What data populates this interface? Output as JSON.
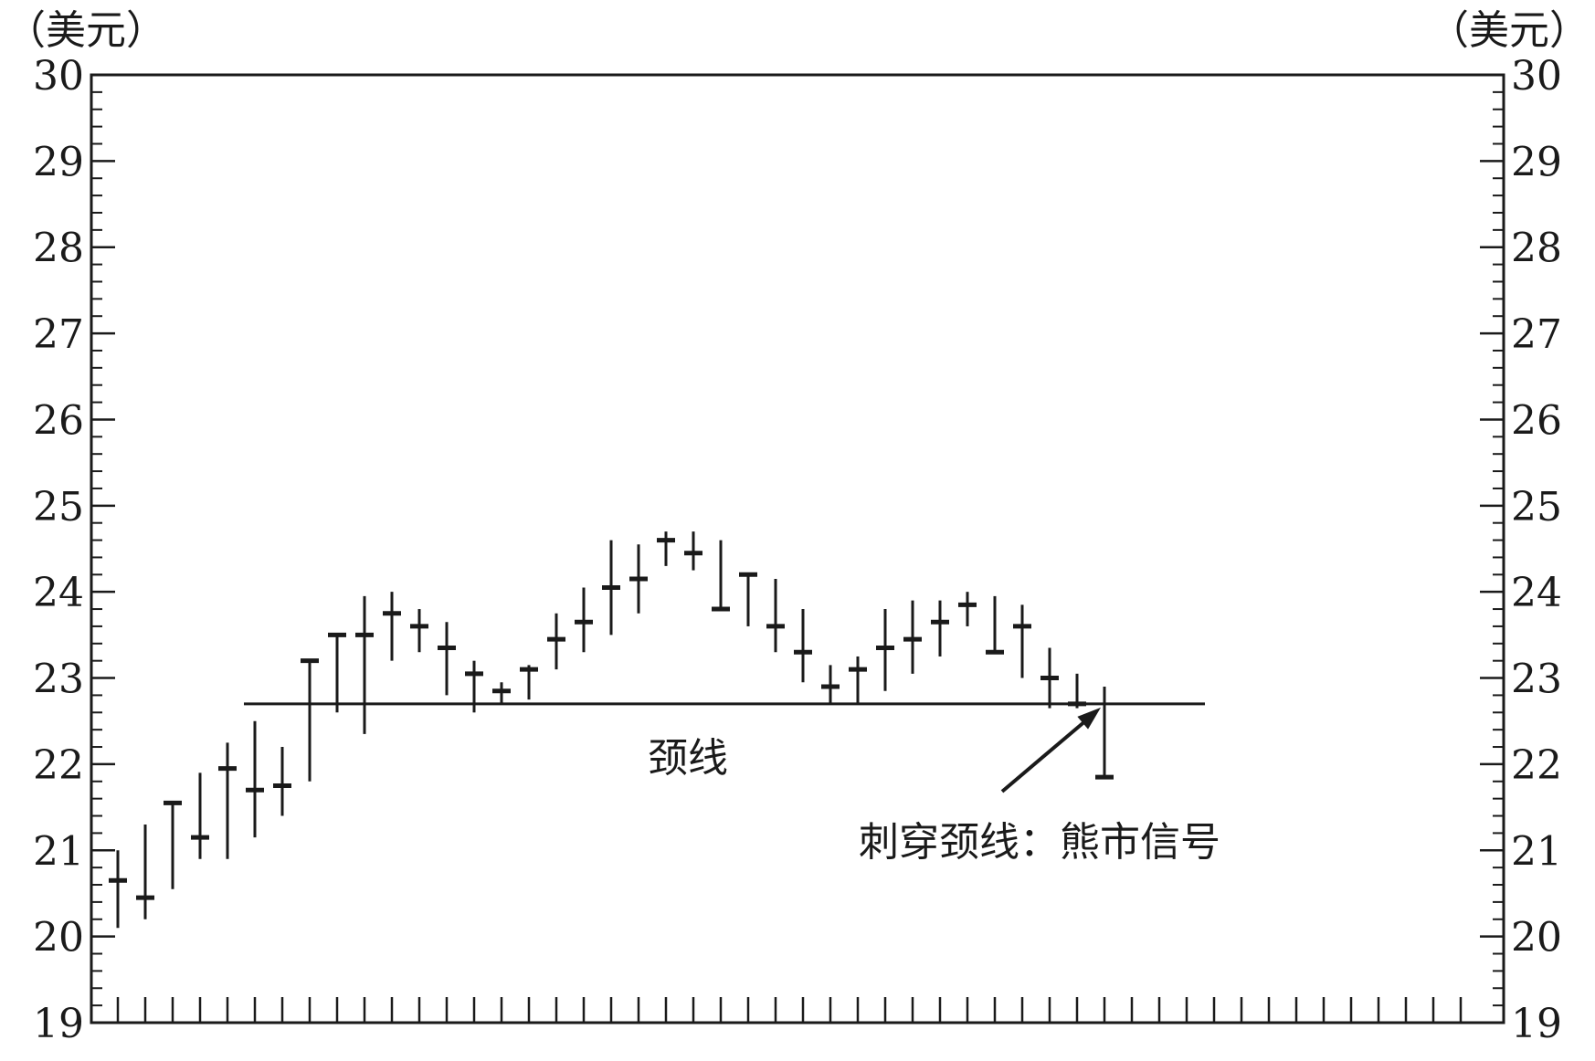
{
  "chart_data": {
    "type": "ohlc",
    "title": "",
    "unit_label_left": "（美元）",
    "unit_label_right": "（美元）",
    "ylim": [
      19,
      30
    ],
    "y_ticks": [
      "19",
      "20",
      "21",
      "22",
      "23",
      "24",
      "25",
      "26",
      "27",
      "28",
      "29",
      "30"
    ],
    "x_tick_count": 50,
    "grid": false,
    "bars": [
      {
        "high": 21.0,
        "low": 20.1,
        "close": 20.65
      },
      {
        "high": 21.3,
        "low": 20.2,
        "close": 20.45
      },
      {
        "high": 21.55,
        "low": 20.55,
        "close": 21.55
      },
      {
        "high": 21.9,
        "low": 20.9,
        "close": 21.15
      },
      {
        "high": 22.25,
        "low": 20.9,
        "close": 21.95
      },
      {
        "high": 22.5,
        "low": 21.15,
        "close": 21.7
      },
      {
        "high": 22.2,
        "low": 21.4,
        "close": 21.75
      },
      {
        "high": 23.2,
        "low": 21.8,
        "close": 23.2
      },
      {
        "high": 23.5,
        "low": 22.6,
        "close": 23.5
      },
      {
        "high": 23.95,
        "low": 22.35,
        "close": 23.5
      },
      {
        "high": 24.0,
        "low": 23.2,
        "close": 23.75
      },
      {
        "high": 23.8,
        "low": 23.3,
        "close": 23.6
      },
      {
        "high": 23.65,
        "low": 22.8,
        "close": 23.35
      },
      {
        "high": 23.2,
        "low": 22.6,
        "close": 23.05
      },
      {
        "high": 22.95,
        "low": 22.7,
        "close": 22.85
      },
      {
        "high": 23.15,
        "low": 22.75,
        "close": 23.1
      },
      {
        "high": 23.75,
        "low": 23.1,
        "close": 23.45
      },
      {
        "high": 24.05,
        "low": 23.3,
        "close": 23.65
      },
      {
        "high": 24.6,
        "low": 23.5,
        "close": 24.05
      },
      {
        "high": 24.55,
        "low": 23.75,
        "close": 24.15
      },
      {
        "high": 24.7,
        "low": 24.3,
        "close": 24.6
      },
      {
        "high": 24.7,
        "low": 24.25,
        "close": 24.45
      },
      {
        "high": 24.6,
        "low": 23.8,
        "close": 23.8
      },
      {
        "high": 24.2,
        "low": 23.6,
        "close": 24.2
      },
      {
        "high": 24.15,
        "low": 23.3,
        "close": 23.6
      },
      {
        "high": 23.8,
        "low": 22.95,
        "close": 23.3
      },
      {
        "high": 23.15,
        "low": 22.7,
        "close": 22.9
      },
      {
        "high": 23.25,
        "low": 22.7,
        "close": 23.1
      },
      {
        "high": 23.8,
        "low": 22.85,
        "close": 23.35
      },
      {
        "high": 23.9,
        "low": 23.05,
        "close": 23.45
      },
      {
        "high": 23.9,
        "low": 23.25,
        "close": 23.65
      },
      {
        "high": 24.0,
        "low": 23.6,
        "close": 23.85
      },
      {
        "high": 23.95,
        "low": 23.3,
        "close": 23.3
      },
      {
        "high": 23.85,
        "low": 23.0,
        "close": 23.6
      },
      {
        "high": 23.35,
        "low": 22.65,
        "close": 23.0
      },
      {
        "high": 23.05,
        "low": 22.65,
        "close": 22.7
      },
      {
        "high": 22.9,
        "low": 21.85,
        "close": 21.85
      }
    ],
    "neckline": {
      "y": 22.7,
      "label": "颈线"
    },
    "annotation": {
      "text": "刺穿颈线：熊市信号"
    }
  }
}
